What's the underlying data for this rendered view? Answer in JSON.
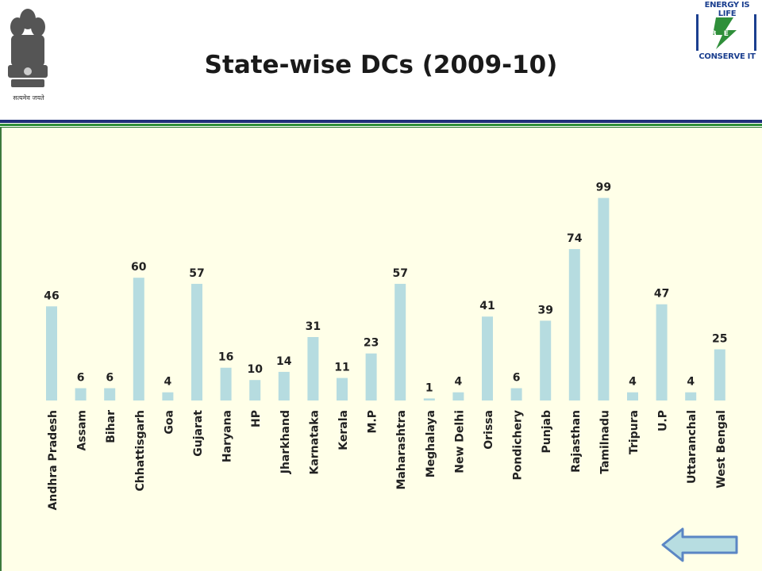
{
  "header": {
    "emblem_caption": "सत्यमेव जयते",
    "logo_line1": "ENERGY IS LIFE",
    "logo_mark": "B E E",
    "logo_line2": "CONSERVE IT"
  },
  "colors": {
    "bar_fill": "#b6dce0",
    "panel_background": "#ffffe8",
    "header_stripe_blue": "#1f2f7a",
    "header_stripe_green": "#2f8f3a",
    "logo_blue": "#1b3f8f",
    "back_button_fill": "#b7dde1",
    "back_button_stroke": "#5b86c4"
  },
  "icons": {
    "back": "left-arrow-icon",
    "emblem": "national-emblem-icon",
    "logo": "bee-logo-icon"
  },
  "chart_data": {
    "type": "bar",
    "title": "State-wise DCs (2009-10)",
    "categories": [
      "Andhra Pradesh",
      "Assam",
      "Bihar",
      "Chhattisgarh",
      "Goa",
      "Gujarat",
      "Haryana",
      "HP",
      "Jharkhand",
      "Karnataka",
      "Kerala",
      "M.P",
      "Maharashtra",
      "Meghalaya",
      "New Delhi",
      "Orissa",
      "Pondichery",
      "Punjab",
      "Rajasthan",
      "Tamilnadu",
      "Tripura",
      "U.P",
      "Uttaranchal",
      "West Bengal"
    ],
    "series": [
      {
        "values": [
          46,
          6,
          6,
          60,
          4,
          57,
          16,
          10,
          14,
          31,
          11,
          23,
          57,
          1,
          4,
          41,
          6,
          39,
          74,
          99,
          4,
          47,
          4,
          25
        ]
      }
    ],
    "data_labels": true,
    "ylim": [
      0,
      100
    ],
    "grid": false,
    "legend": "none",
    "xlabel": "",
    "ylabel": ""
  }
}
